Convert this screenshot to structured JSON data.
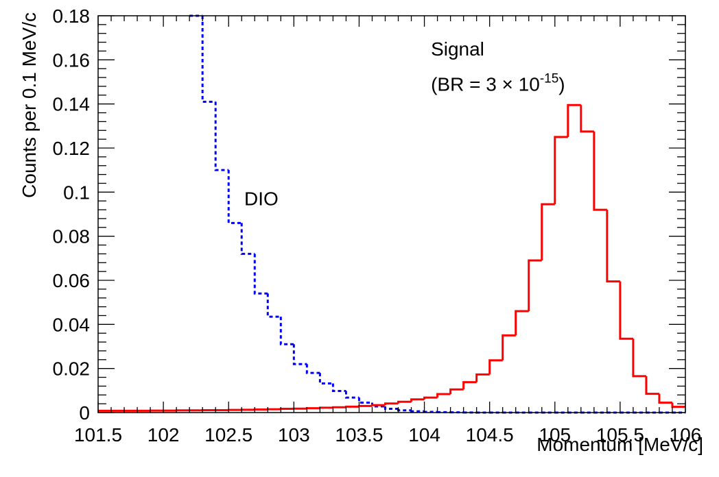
{
  "chart_data": {
    "type": "line",
    "style": "step-histogram",
    "xlabel": "Momentum [MeV/c]",
    "ylabel": "Counts per 0.1 MeV/c",
    "xlim": [
      101.5,
      106
    ],
    "ylim": [
      0,
      0.18
    ],
    "x_ticks": [
      "101.5",
      "102",
      "102.5",
      "103",
      "103.5",
      "104",
      "104.5",
      "105",
      "105.5",
      "106"
    ],
    "y_ticks": [
      "0",
      "0.02",
      "0.04",
      "0.06",
      "0.08",
      "0.1",
      "0.12",
      "0.14",
      "0.16",
      "0.18"
    ],
    "bin_width": 0.1,
    "annotations": [
      {
        "text": "DIO",
        "x": 102.62,
        "y": 0.094
      },
      {
        "text": "Signal",
        "x": 104.05,
        "y": 0.162
      },
      {
        "text": "(BR = 3 × 10",
        "sup": "-15",
        "after": ")",
        "x": 104.05,
        "y": 0.146
      }
    ],
    "series": [
      {
        "name": "DIO",
        "color": "#0000ff",
        "line_style": "dotted",
        "bin_edges_start": 102.2,
        "values": [
          0.18,
          0.141,
          0.11,
          0.086,
          0.072,
          0.054,
          0.0435,
          0.031,
          0.022,
          0.018,
          0.0132,
          0.0098,
          0.0068,
          0.0045,
          0.0028,
          0.0017,
          0.001,
          0.0006,
          0.0003,
          0.0002,
          0.0001,
          5e-05,
          0,
          0,
          0,
          0,
          0,
          0,
          0,
          0,
          0,
          0,
          0,
          0,
          0,
          0,
          0,
          0
        ]
      },
      {
        "name": "Signal",
        "color": "#ff0000",
        "line_style": "solid",
        "bin_edges_start": 101.5,
        "values": [
          0.0008,
          0.0008,
          0.0008,
          0.0008,
          0.0009,
          0.0009,
          0.001,
          0.001,
          0.0011,
          0.0011,
          0.0012,
          0.0013,
          0.0014,
          0.0015,
          0.0017,
          0.0018,
          0.002,
          0.0022,
          0.0024,
          0.0027,
          0.003,
          0.0034,
          0.0041,
          0.0049,
          0.006,
          0.0068,
          0.0084,
          0.0105,
          0.0138,
          0.0173,
          0.0237,
          0.035,
          0.046,
          0.069,
          0.0945,
          0.125,
          0.1395,
          0.1275,
          0.092,
          0.0595,
          0.0335,
          0.0165,
          0.0085,
          0.0045,
          0.0026,
          0.0015
        ]
      }
    ]
  }
}
